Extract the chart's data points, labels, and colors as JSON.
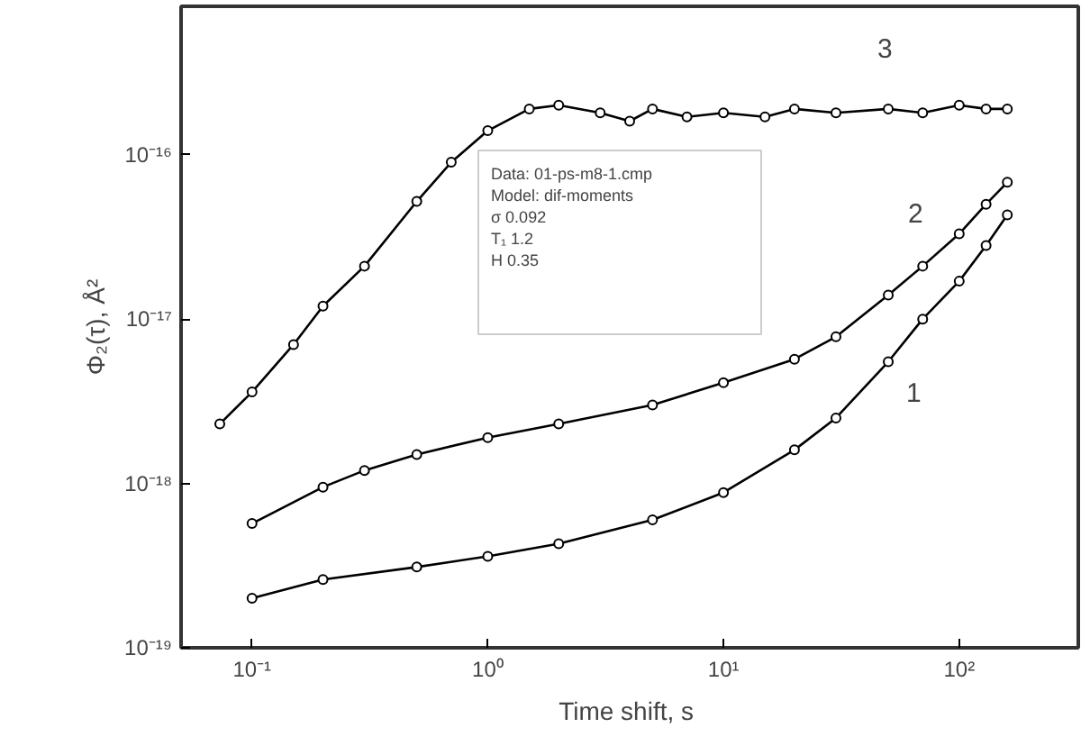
{
  "chart_data": {
    "type": "line",
    "xlabel": "Time shift,  s",
    "ylabel": "Φ₂(τ), Å²",
    "log": "xy",
    "marker": "circle",
    "line_style": "solid",
    "grid": false,
    "xlim": [
      0.05,
      320
    ],
    "ylim": [
      1e-19,
      8e-16
    ],
    "xticks": [
      {
        "value": 0.1,
        "label": "10⁻¹"
      },
      {
        "value": 1,
        "label": "10⁰"
      },
      {
        "value": 10,
        "label": "10¹"
      },
      {
        "value": 100,
        "label": "10²"
      }
    ],
    "yticks": [
      {
        "value": 1e-19,
        "label": "10⁻¹⁹"
      },
      {
        "value": 1e-18,
        "label": "10⁻¹⁸"
      },
      {
        "value": 1e-17,
        "label": "10⁻¹⁷"
      },
      {
        "value": 1e-16,
        "label": "10⁻¹⁶"
      }
    ],
    "series": [
      {
        "name": "1",
        "color": "#000000",
        "x": [
          0.1,
          0.2,
          0.5,
          1,
          2,
          5,
          10,
          20,
          30,
          50,
          70,
          100,
          130,
          160
        ],
        "values": [
          2e-19,
          2.6e-19,
          3.1e-19,
          3.6e-19,
          4.3e-19,
          6e-19,
          8.8e-19,
          1.6e-18,
          2.5e-18,
          5.5e-18,
          1e-17,
          1.7e-17,
          2.8e-17,
          4.3e-17
        ]
      },
      {
        "name": "2",
        "color": "#000000",
        "x": [
          0.1,
          0.2,
          0.3,
          0.5,
          1,
          2,
          5,
          10,
          20,
          30,
          50,
          70,
          100,
          130,
          160
        ],
        "values": [
          5.7e-19,
          9.5e-19,
          1.2e-18,
          1.5e-18,
          1.9e-18,
          2.3e-18,
          3e-18,
          4.1e-18,
          5.7e-18,
          7.8e-18,
          1.4e-17,
          2.1e-17,
          3.3e-17,
          5e-17,
          6.8e-17
        ]
      },
      {
        "name": "3",
        "color": "#000000",
        "x": [
          0.073,
          0.1,
          0.15,
          0.2,
          0.3,
          0.5,
          0.7,
          1,
          1.5,
          2,
          3,
          4,
          5,
          7,
          10,
          15,
          20,
          30,
          50,
          70,
          100,
          130,
          160
        ],
        "values": [
          2.3e-18,
          3.6e-18,
          7e-18,
          1.2e-17,
          2.1e-17,
          5.2e-17,
          9e-17,
          1.4e-16,
          1.9e-16,
          2e-16,
          1.8e-16,
          1.6e-16,
          1.9e-16,
          1.7e-16,
          1.8e-16,
          1.7e-16,
          1.9e-16,
          1.8e-16,
          1.9e-16,
          1.8e-16,
          2e-16,
          1.9e-16,
          1.9e-16
        ]
      }
    ],
    "annotations": [
      "Data: 01-ps-m8-1.cmp",
      "Model: dif-moments",
      "σ        0.092",
      "T₁       1.2",
      "H        0.35"
    ]
  }
}
